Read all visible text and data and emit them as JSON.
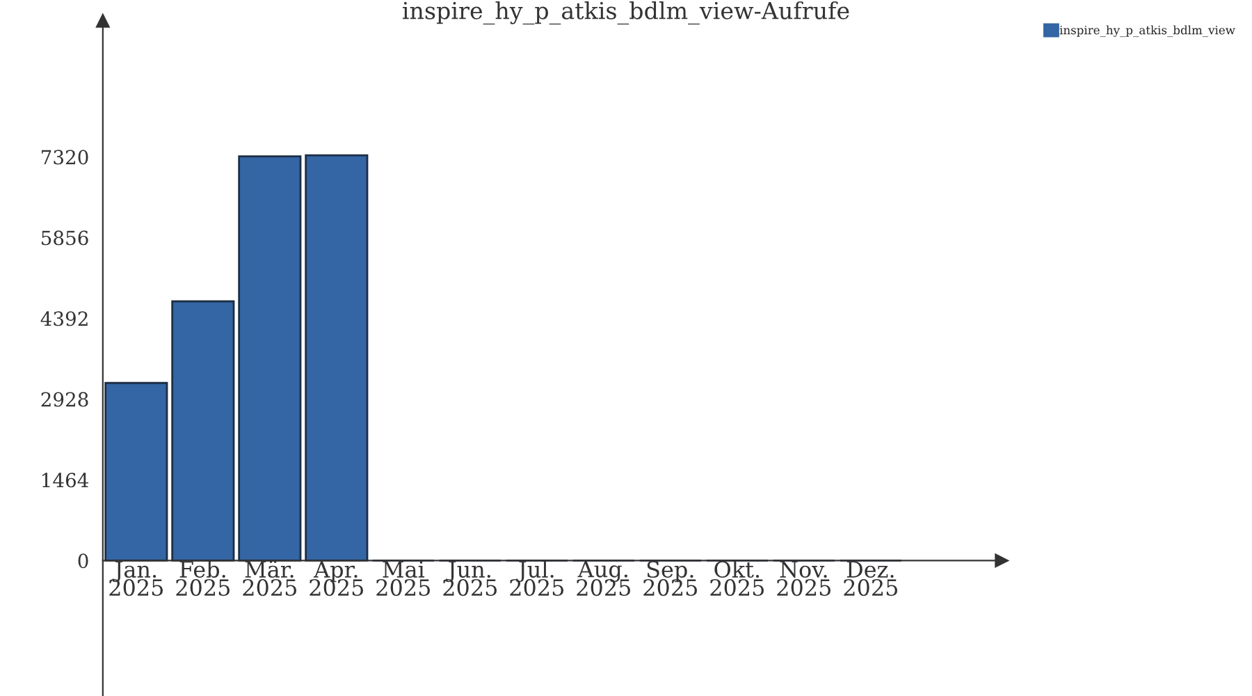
{
  "chart_data": {
    "type": "bar",
    "title": "inspire_hy_p_atkis_bdlm_view-Aufrufe",
    "categories": [
      "Jan.\n2025",
      "Feb.\n2025",
      "Mär.\n2025",
      "Apr.\n2025",
      "Mai\n2025",
      "Jun.\n2025",
      "Jul.\n2025",
      "Aug.\n2025",
      "Sep.\n2025",
      "Okt.\n2025",
      "Nov.\n2025",
      "Dez.\n2025"
    ],
    "series": [
      {
        "name": "inspire_hy_p_atkis_bdlm_view",
        "color": "#3465a4",
        "values": [
          3220,
          4700,
          7330,
          7350,
          0,
          0,
          0,
          0,
          0,
          0,
          0,
          0
        ]
      }
    ],
    "ylim": [
      -2456,
      9786
    ],
    "yticks": [
      0,
      1464,
      2928,
      4392,
      5856,
      7320
    ],
    "legend": "top right"
  }
}
